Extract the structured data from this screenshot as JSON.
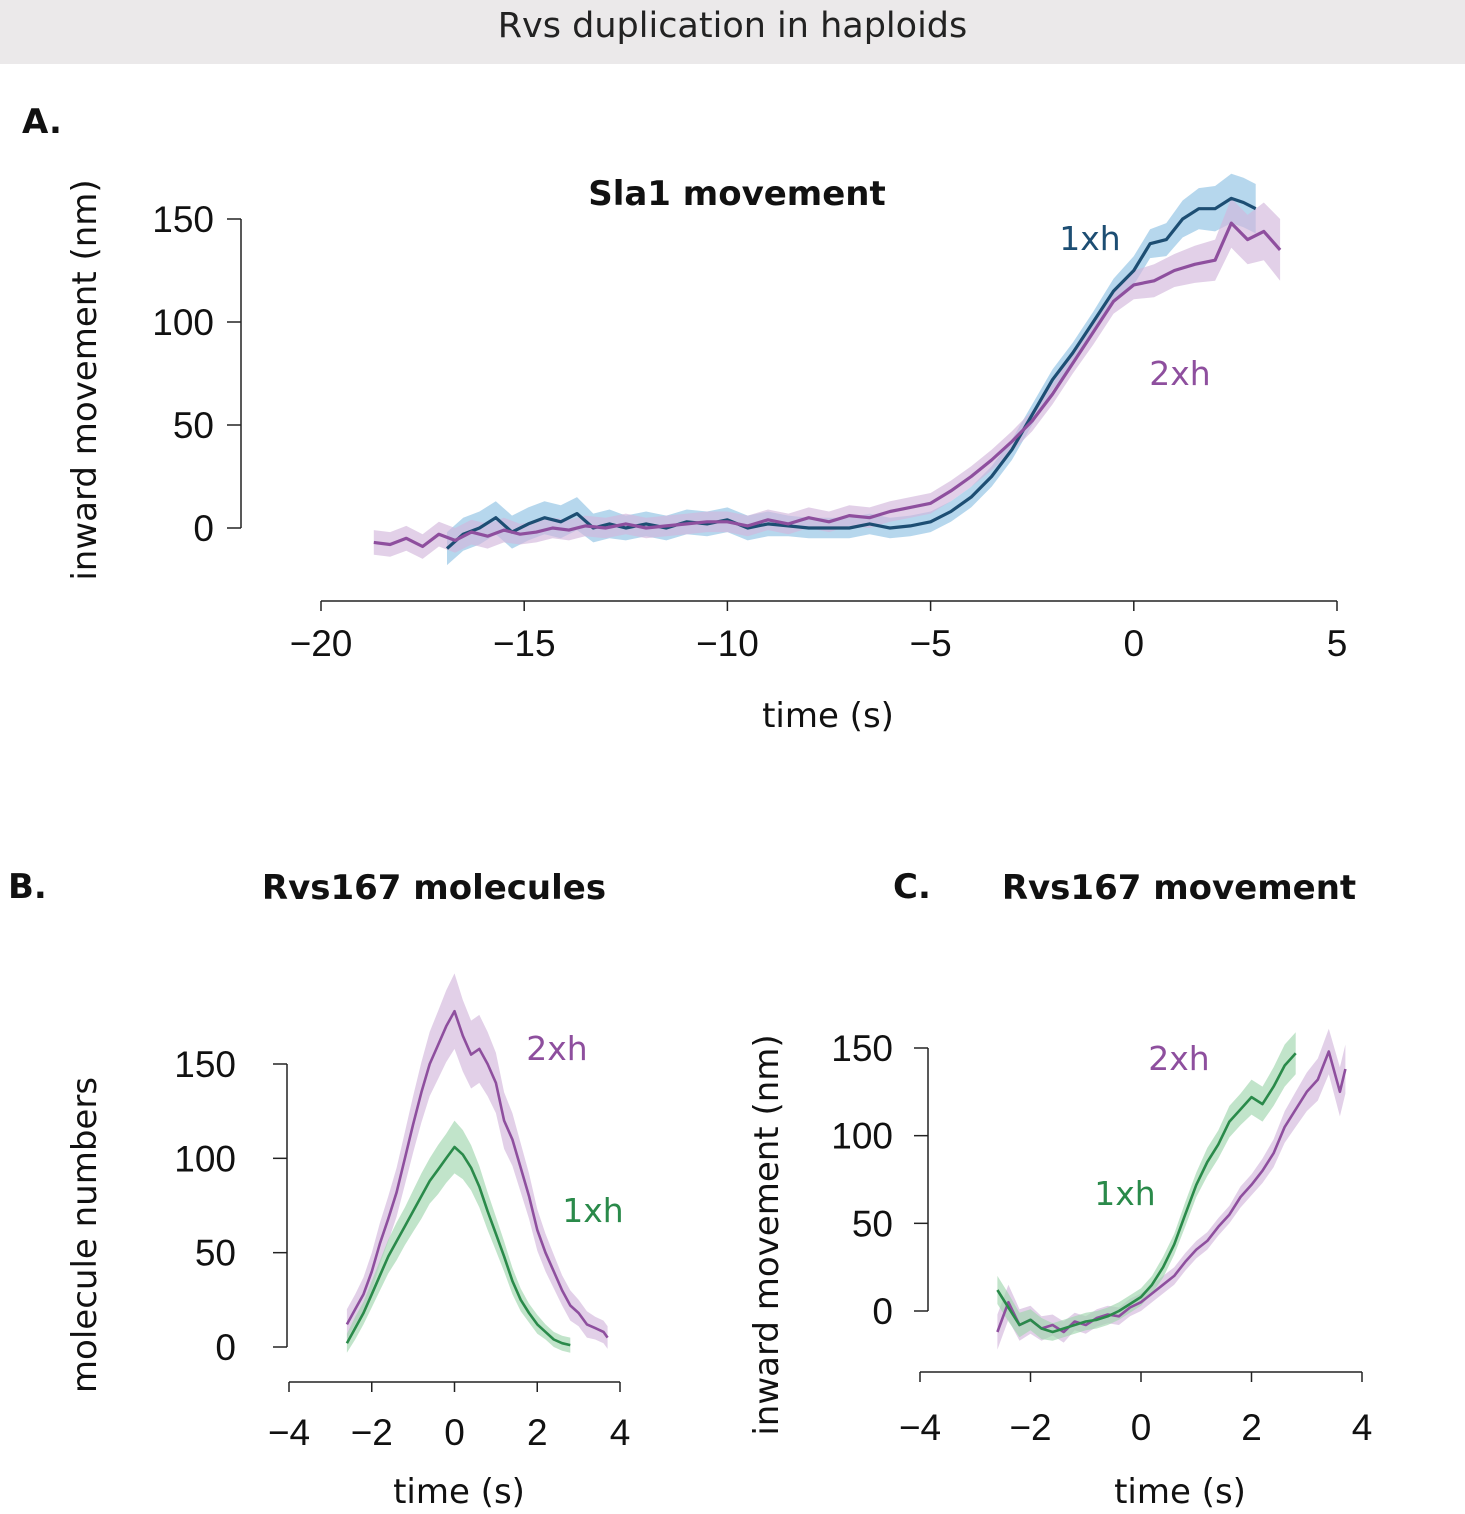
{
  "figure_title": "Rvs duplication in haploids",
  "colors": {
    "one_xh_A": "#1d4e73",
    "one_xh_A_band": "#8fc1e3",
    "two_xh": "#8e4f9e",
    "two_xh_band": "#d2b7dc",
    "one_xh_BC": "#2a8a4a",
    "one_xh_BC_band": "#9fd6ad"
  },
  "chart_data": [
    {
      "panel": "A.",
      "type": "line",
      "title": "Sla1 movement",
      "xlabel": "time (s)",
      "ylabel": "inward movement (nm)",
      "xlim": [
        -20,
        5
      ],
      "ylim": [
        -15,
        160
      ],
      "xticks": [
        -20,
        -15,
        -10,
        -5,
        0,
        5
      ],
      "xtick_labels": [
        "−20",
        "−15",
        "−10",
        "−5",
        "0",
        "5"
      ],
      "yticks": [
        0,
        50,
        100,
        150
      ],
      "ytick_labels": [
        "0",
        "50",
        "100",
        "150"
      ],
      "grid": false,
      "series": [
        {
          "name": "1xh",
          "color": "#1d4e73",
          "band_color": "#8fc1e3",
          "x": [
            -16.9,
            -16.5,
            -16.1,
            -15.7,
            -15.3,
            -14.9,
            -14.5,
            -14.1,
            -13.7,
            -13.3,
            -12.9,
            -12.5,
            -12.0,
            -11.5,
            -11.0,
            -10.5,
            -10.0,
            -9.5,
            -9.0,
            -8.5,
            -8.0,
            -7.5,
            -7.0,
            -6.5,
            -6.0,
            -5.5,
            -5.0,
            -4.5,
            -4.0,
            -3.5,
            -3.0,
            -2.5,
            -2.0,
            -1.5,
            -1.0,
            -0.5,
            0.0,
            0.4,
            0.8,
            1.2,
            1.6,
            2.0,
            2.4,
            2.7,
            3.0
          ],
          "y": [
            -10,
            -3,
            0,
            5,
            -2,
            2,
            5,
            3,
            7,
            0,
            2,
            0,
            2,
            0,
            3,
            2,
            4,
            0,
            2,
            1,
            0,
            0,
            0,
            2,
            0,
            1,
            3,
            8,
            15,
            25,
            38,
            55,
            72,
            85,
            100,
            115,
            125,
            138,
            140,
            150,
            155,
            155,
            160,
            158,
            155
          ],
          "err": [
            8,
            8,
            8,
            8,
            8,
            8,
            8,
            8,
            8,
            7,
            7,
            6,
            6,
            6,
            6,
            6,
            6,
            6,
            6,
            5,
            5,
            5,
            5,
            5,
            5,
            5,
            5,
            5,
            5,
            5,
            5,
            5,
            5,
            5,
            5,
            6,
            7,
            7,
            8,
            9,
            10,
            11,
            12,
            12,
            12
          ]
        },
        {
          "name": "2xh",
          "color": "#8e4f9e",
          "band_color": "#d2b7dc",
          "x": [
            -18.7,
            -18.3,
            -17.9,
            -17.5,
            -17.1,
            -16.7,
            -16.3,
            -15.9,
            -15.5,
            -15.1,
            -14.7,
            -14.3,
            -13.9,
            -13.5,
            -13.0,
            -12.5,
            -12.0,
            -11.5,
            -11.0,
            -10.5,
            -10.0,
            -9.5,
            -9.0,
            -8.5,
            -8.0,
            -7.5,
            -7.0,
            -6.5,
            -6.0,
            -5.5,
            -5.0,
            -4.5,
            -4.0,
            -3.5,
            -3.0,
            -2.5,
            -2.0,
            -1.5,
            -1.0,
            -0.5,
            0.0,
            0.5,
            1.0,
            1.5,
            2.0,
            2.4,
            2.8,
            3.2,
            3.6
          ],
          "y": [
            -7,
            -8,
            -5,
            -9,
            -3,
            -6,
            -2,
            -4,
            -1,
            -3,
            -2,
            0,
            -1,
            1,
            0,
            2,
            0,
            1,
            2,
            3,
            3,
            1,
            4,
            2,
            5,
            3,
            6,
            5,
            8,
            10,
            12,
            18,
            25,
            33,
            42,
            52,
            65,
            80,
            95,
            110,
            118,
            120,
            125,
            128,
            130,
            148,
            140,
            144,
            135
          ],
          "err": [
            6,
            6,
            6,
            6,
            6,
            6,
            6,
            6,
            6,
            5,
            5,
            5,
            5,
            5,
            5,
            5,
            5,
            5,
            5,
            5,
            5,
            5,
            5,
            5,
            5,
            5,
            5,
            5,
            5,
            5,
            5,
            5,
            5,
            5,
            5,
            5,
            5,
            5,
            6,
            6,
            7,
            8,
            8,
            9,
            10,
            12,
            12,
            14,
            15
          ]
        }
      ]
    },
    {
      "panel": "B.",
      "type": "line",
      "title": "Rvs167 molecules",
      "xlabel": "time (s)",
      "ylabel": "molecule numbers",
      "xlim": [
        -4,
        4
      ],
      "ylim": [
        -15,
        190
      ],
      "xticks": [
        -4,
        -2,
        0,
        2,
        4
      ],
      "xtick_labels": [
        "−4",
        "−2",
        "0",
        "2",
        "4"
      ],
      "yticks": [
        0,
        50,
        100,
        150
      ],
      "ytick_labels": [
        "0",
        "50",
        "100",
        "150"
      ],
      "grid": false,
      "series": [
        {
          "name": "2xh",
          "color": "#8e4f9e",
          "band_color": "#d2b7dc",
          "x": [
            -2.6,
            -2.4,
            -2.2,
            -2.0,
            -1.8,
            -1.6,
            -1.4,
            -1.2,
            -1.0,
            -0.8,
            -0.6,
            -0.4,
            -0.2,
            0.0,
            0.2,
            0.4,
            0.6,
            0.8,
            1.0,
            1.2,
            1.4,
            1.6,
            1.8,
            2.0,
            2.2,
            2.4,
            2.6,
            2.8,
            3.0,
            3.2,
            3.4,
            3.6,
            3.7
          ],
          "y": [
            12,
            20,
            28,
            40,
            55,
            68,
            82,
            100,
            118,
            135,
            150,
            160,
            170,
            178,
            165,
            155,
            158,
            150,
            140,
            120,
            110,
            95,
            80,
            62,
            50,
            40,
            30,
            22,
            18,
            12,
            10,
            8,
            5
          ],
          "err": [
            8,
            8,
            9,
            10,
            11,
            12,
            13,
            14,
            15,
            16,
            17,
            18,
            19,
            20,
            19,
            18,
            18,
            17,
            16,
            15,
            14,
            13,
            12,
            11,
            10,
            9,
            8,
            8,
            7,
            7,
            6,
            6,
            6
          ]
        },
        {
          "name": "1xh",
          "color": "#2a8a4a",
          "band_color": "#9fd6ad",
          "x": [
            -2.6,
            -2.4,
            -2.2,
            -2.0,
            -1.8,
            -1.6,
            -1.4,
            -1.2,
            -1.0,
            -0.8,
            -0.6,
            -0.4,
            -0.2,
            0.0,
            0.2,
            0.4,
            0.6,
            0.8,
            1.0,
            1.2,
            1.4,
            1.6,
            1.8,
            2.0,
            2.2,
            2.4,
            2.6,
            2.8
          ],
          "y": [
            2,
            10,
            18,
            28,
            38,
            48,
            56,
            64,
            72,
            80,
            88,
            94,
            100,
            106,
            102,
            95,
            85,
            72,
            60,
            48,
            35,
            25,
            18,
            12,
            8,
            4,
            2,
            1
          ],
          "err": [
            5,
            6,
            6,
            7,
            8,
            9,
            10,
            10,
            11,
            12,
            12,
            13,
            13,
            14,
            13,
            12,
            11,
            10,
            9,
            8,
            7,
            6,
            5,
            5,
            4,
            4,
            4,
            4
          ]
        }
      ]
    },
    {
      "panel": "C.",
      "type": "line",
      "title": "Rvs167 movement",
      "xlabel": "time (s)",
      "ylabel": "inward movement (nm)",
      "xlim": [
        -4,
        4
      ],
      "ylim": [
        -35,
        160
      ],
      "xticks": [
        -4,
        -2,
        0,
        2,
        4
      ],
      "xtick_labels": [
        "−4",
        "−2",
        "0",
        "2",
        "4"
      ],
      "yticks": [
        0,
        50,
        100,
        150
      ],
      "ytick_labels": [
        "0",
        "50",
        "100",
        "150"
      ],
      "grid": false,
      "series": [
        {
          "name": "2xh",
          "color": "#8e4f9e",
          "band_color": "#d2b7dc",
          "x": [
            -2.6,
            -2.4,
            -2.2,
            -2.0,
            -1.8,
            -1.6,
            -1.4,
            -1.2,
            -1.0,
            -0.8,
            -0.6,
            -0.4,
            -0.2,
            0.0,
            0.2,
            0.4,
            0.6,
            0.8,
            1.0,
            1.2,
            1.4,
            1.6,
            1.8,
            2.0,
            2.2,
            2.4,
            2.6,
            2.8,
            3.0,
            3.2,
            3.4,
            3.6,
            3.7
          ],
          "y": [
            -12,
            5,
            -8,
            -5,
            -10,
            -8,
            -12,
            -6,
            -8,
            -4,
            -2,
            -3,
            2,
            5,
            10,
            15,
            20,
            28,
            35,
            40,
            48,
            55,
            65,
            72,
            80,
            90,
            105,
            115,
            125,
            132,
            148,
            125,
            138
          ],
          "err": [
            10,
            10,
            9,
            8,
            7,
            6,
            6,
            5,
            5,
            5,
            5,
            5,
            5,
            5,
            5,
            5,
            5,
            5,
            5,
            5,
            5,
            5,
            6,
            6,
            7,
            8,
            9,
            10,
            11,
            12,
            13,
            14,
            14
          ]
        },
        {
          "name": "1xh",
          "color": "#2a8a4a",
          "band_color": "#9fd6ad",
          "x": [
            -2.6,
            -2.4,
            -2.2,
            -2.0,
            -1.8,
            -1.6,
            -1.4,
            -1.2,
            -1.0,
            -0.8,
            -0.6,
            -0.4,
            -0.2,
            0.0,
            0.2,
            0.4,
            0.6,
            0.8,
            1.0,
            1.2,
            1.4,
            1.6,
            1.8,
            2.0,
            2.2,
            2.4,
            2.6,
            2.8
          ],
          "y": [
            12,
            2,
            -8,
            -5,
            -10,
            -12,
            -10,
            -8,
            -6,
            -5,
            -3,
            0,
            4,
            8,
            15,
            25,
            38,
            55,
            72,
            85,
            95,
            108,
            115,
            122,
            118,
            128,
            140,
            147
          ],
          "err": [
            8,
            8,
            7,
            6,
            6,
            5,
            5,
            5,
            5,
            5,
            5,
            5,
            5,
            5,
            5,
            6,
            6,
            7,
            7,
            8,
            8,
            9,
            9,
            10,
            10,
            11,
            12,
            12
          ]
        }
      ]
    }
  ]
}
